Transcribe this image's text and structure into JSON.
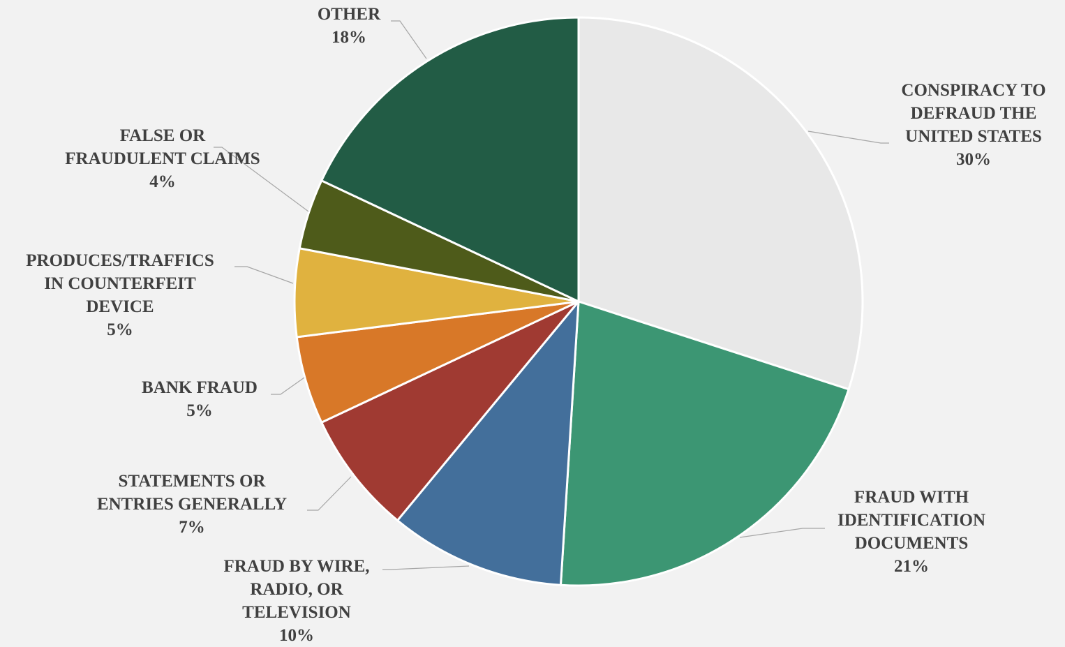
{
  "chart_data": {
    "type": "pie",
    "title": "",
    "legend": "none",
    "start_angle_deg": 0,
    "direction": "clockwise",
    "slices": [
      {
        "name": "CONSPIRACY TO DEFRAUD THE UNITED STATES",
        "label_lines": [
          "CONSPIRACY TO",
          "DEFRAUD THE",
          "UNITED STATES"
        ],
        "value": 30,
        "value_label": "30%",
        "color": "#e8e8e8"
      },
      {
        "name": "FRAUD WITH IDENTIFICATION DOCUMENTS",
        "label_lines": [
          "FRAUD WITH",
          "IDENTIFICATION",
          "DOCUMENTS"
        ],
        "value": 21,
        "value_label": "21%",
        "color": "#3c9673"
      },
      {
        "name": "FRAUD BY WIRE, RADIO, OR TELEVISION",
        "label_lines": [
          "FRAUD BY WIRE,",
          "RADIO, OR",
          "TELEVISION"
        ],
        "value": 10,
        "value_label": "10%",
        "color": "#436f9b"
      },
      {
        "name": "STATEMENTS OR ENTRIES GENERALLY",
        "label_lines": [
          "STATEMENTS OR",
          "ENTRIES GENERALLY"
        ],
        "value": 7,
        "value_label": "7%",
        "color": "#a03a32"
      },
      {
        "name": "BANK FRAUD",
        "label_lines": [
          "BANK FRAUD"
        ],
        "value": 5,
        "value_label": "5%",
        "color": "#d87828"
      },
      {
        "name": "PRODUCES/TRAFFICS IN COUNTERFEIT DEVICE",
        "label_lines": [
          "PRODUCES/TRAFFICS",
          "IN COUNTERFEIT",
          "DEVICE"
        ],
        "value": 5,
        "value_label": "5%",
        "color": "#e0b23f"
      },
      {
        "name": "FALSE OR FRAUDULENT CLAIMS",
        "label_lines": [
          "FALSE OR",
          "FRAUDULENT CLAIMS"
        ],
        "value": 4,
        "value_label": "4%",
        "color": "#4e5b1a"
      },
      {
        "name": "OTHER",
        "label_lines": [
          "OTHER"
        ],
        "value": 18,
        "value_label": "18%",
        "color": "#225c45"
      }
    ]
  }
}
